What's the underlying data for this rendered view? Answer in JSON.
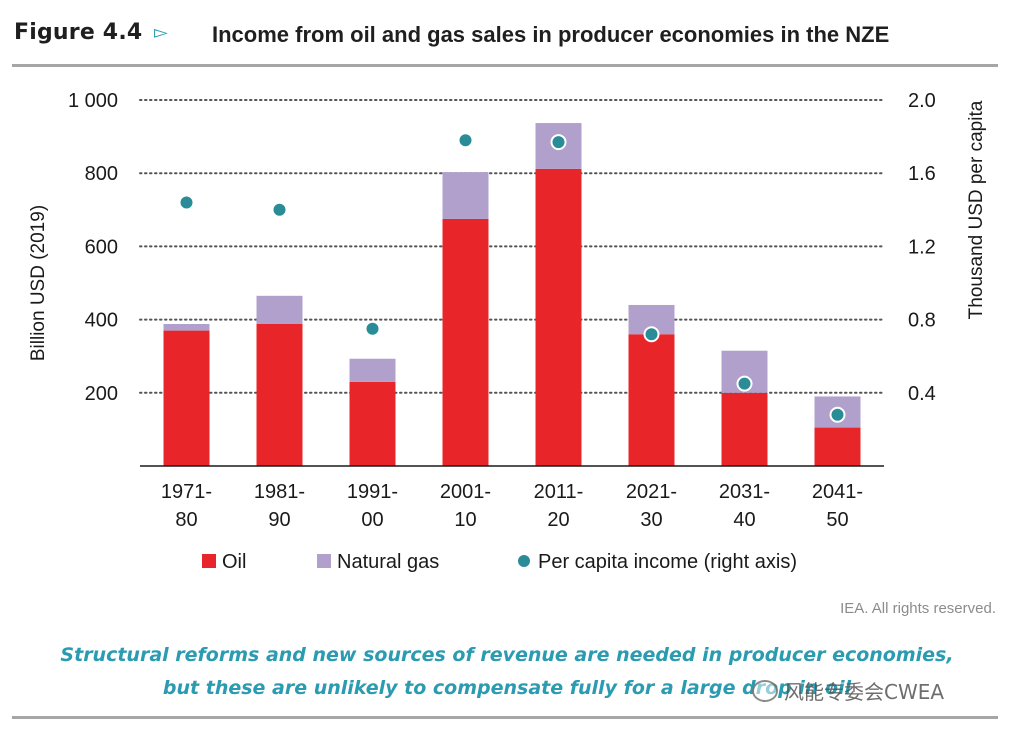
{
  "header": {
    "figure_label": "Figure 4.4",
    "title": "Income from oil and gas sales in producer economies in the NZE"
  },
  "rights": "IEA. All rights reserved.",
  "caption": {
    "line1": "Structural reforms and new sources of revenue are needed in producer economies,",
    "line2": "but these are unlikely to compensate fully for a large drop in oil"
  },
  "watermark": "风能专委会CWEA",
  "colors": {
    "oil": "#e8262a",
    "gas": "#b1a0cc",
    "per_capita": "#2a8c96",
    "accent": "#2a9bb0"
  },
  "chart_data": {
    "type": "bar",
    "stacked": true,
    "categories": [
      [
        "1971-",
        "80"
      ],
      [
        "1981-",
        "90"
      ],
      [
        "1991-",
        "00"
      ],
      [
        "2001-",
        "10"
      ],
      [
        "2011-",
        "20"
      ],
      [
        "2021-",
        "30"
      ],
      [
        "2031-",
        "40"
      ],
      [
        "2041-",
        "50"
      ]
    ],
    "series": [
      {
        "name": "Oil",
        "values": [
          370,
          388,
          230,
          675,
          812,
          360,
          200,
          105
        ]
      },
      {
        "name": "Natural gas",
        "values": [
          18,
          77,
          63,
          128,
          125,
          80,
          115,
          85
        ]
      }
    ],
    "secondary_series": {
      "name": "Per capita income (right axis)",
      "type": "scatter",
      "axis": "right",
      "values": [
        1.44,
        1.4,
        0.75,
        1.78,
        1.77,
        0.72,
        0.45,
        0.28
      ]
    },
    "ylabel": "Billion USD (2019)",
    "ylabel_right": "Thousand USD per capita",
    "ylim": [
      0,
      1000
    ],
    "ylim_right": [
      0,
      2.0
    ],
    "yticks": [
      {
        "value": 200,
        "label": "200"
      },
      {
        "value": 400,
        "label": "400"
      },
      {
        "value": 600,
        "label": "600"
      },
      {
        "value": 800,
        "label": "800"
      },
      {
        "value": 1000,
        "label": "1 000"
      }
    ],
    "yticks_right": [
      {
        "value": 0.4,
        "label": "0.4"
      },
      {
        "value": 0.8,
        "label": "0.8"
      },
      {
        "value": 1.2,
        "label": "1.2"
      },
      {
        "value": 1.6,
        "label": "1.6"
      },
      {
        "value": 2.0,
        "label": "2.0"
      }
    ],
    "grid": true,
    "legend_position": "bottom"
  }
}
